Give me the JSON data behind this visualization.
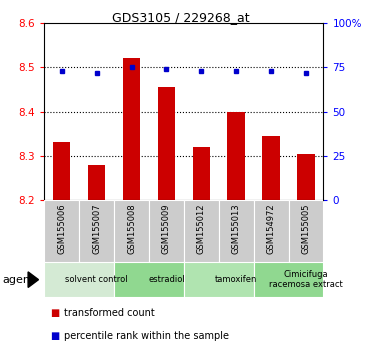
{
  "title": "GDS3105 / 229268_at",
  "samples": [
    "GSM155006",
    "GSM155007",
    "GSM155008",
    "GSM155009",
    "GSM155012",
    "GSM155013",
    "GSM154972",
    "GSM155005"
  ],
  "red_values": [
    8.33,
    8.28,
    8.52,
    8.455,
    8.32,
    8.4,
    8.345,
    8.305
  ],
  "blue_values": [
    73,
    72,
    75,
    74,
    73,
    73,
    73,
    72
  ],
  "ylim_left": [
    8.2,
    8.6
  ],
  "ylim_right": [
    0,
    100
  ],
  "yticks_left": [
    8.2,
    8.3,
    8.4,
    8.5,
    8.6
  ],
  "yticks_right": [
    0,
    25,
    50,
    75,
    100
  ],
  "hlines": [
    8.3,
    8.4,
    8.5
  ],
  "groups": [
    {
      "label": "solvent control",
      "start": 0,
      "end": 2,
      "color": "#d4ead4"
    },
    {
      "label": "estradiol",
      "start": 2,
      "end": 4,
      "color": "#90d890"
    },
    {
      "label": "tamoxifen",
      "start": 4,
      "end": 6,
      "color": "#b0e4b0"
    },
    {
      "label": "Cimicifuga\nracemosa extract",
      "start": 6,
      "end": 8,
      "color": "#90d890"
    }
  ],
  "bar_color": "#cc0000",
  "dot_color": "#0000cc",
  "bar_width": 0.5,
  "agent_label": "agent",
  "legend_items": [
    {
      "color": "#cc0000",
      "label": "transformed count"
    },
    {
      "color": "#0000cc",
      "label": "percentile rank within the sample"
    }
  ]
}
